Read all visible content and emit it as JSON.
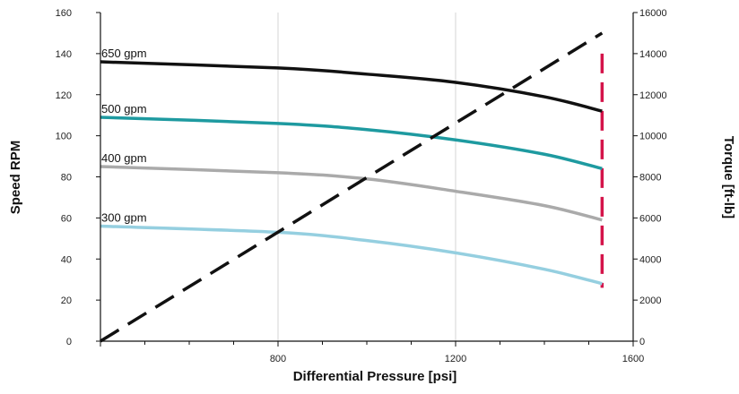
{
  "chart_data": {
    "type": "line",
    "xlabel": "Differential Pressure [psi]",
    "ylabel_left": "Speed RPM",
    "ylabel_right": "Torque [ft-lb]",
    "xlim": [
      400,
      1600
    ],
    "ylim_left": [
      0,
      160
    ],
    "ylim_right": [
      0,
      16000
    ],
    "x_ticks": [
      "800",
      "1200",
      "1600"
    ],
    "y_left_ticks": [
      "0",
      "20",
      "40",
      "60",
      "80",
      "100",
      "120",
      "140",
      "160"
    ],
    "y_right_ticks": [
      "0",
      "2000",
      "4000",
      "6000",
      "8000",
      "10000",
      "12000",
      "14000",
      "16000"
    ],
    "grid": "vertical",
    "series": [
      {
        "name": "650 gpm",
        "color": "#111111",
        "style": "solid",
        "axis": "left",
        "x": [
          400,
          800,
          1000,
          1200,
          1400,
          1530
        ],
        "y": [
          136,
          133,
          130,
          126,
          119,
          112
        ]
      },
      {
        "name": "500 gpm",
        "color": "#1e9aa0",
        "style": "solid",
        "axis": "left",
        "x": [
          400,
          800,
          1000,
          1200,
          1400,
          1530
        ],
        "y": [
          109,
          106,
          103,
          98,
          91,
          84
        ]
      },
      {
        "name": "400 gpm",
        "color": "#aaaaaa",
        "style": "solid",
        "axis": "left",
        "x": [
          400,
          800,
          1000,
          1200,
          1400,
          1530
        ],
        "y": [
          85,
          82,
          79,
          73,
          66,
          59
        ]
      },
      {
        "name": "300 gpm",
        "color": "#95cfe0",
        "style": "solid",
        "axis": "left",
        "x": [
          400,
          800,
          1000,
          1200,
          1400,
          1530
        ],
        "y": [
          56,
          53,
          49,
          43,
          35,
          28
        ]
      },
      {
        "name": "",
        "color": "#111111",
        "style": "dashed",
        "axis": "right",
        "x": [
          400,
          1530
        ],
        "y": [
          0,
          15000
        ]
      }
    ],
    "annotations": [
      {
        "type": "vertical-line",
        "x": 1530,
        "y_from": 26,
        "y_to": 140,
        "color": "#d4144a",
        "style": "dashed"
      }
    ]
  }
}
